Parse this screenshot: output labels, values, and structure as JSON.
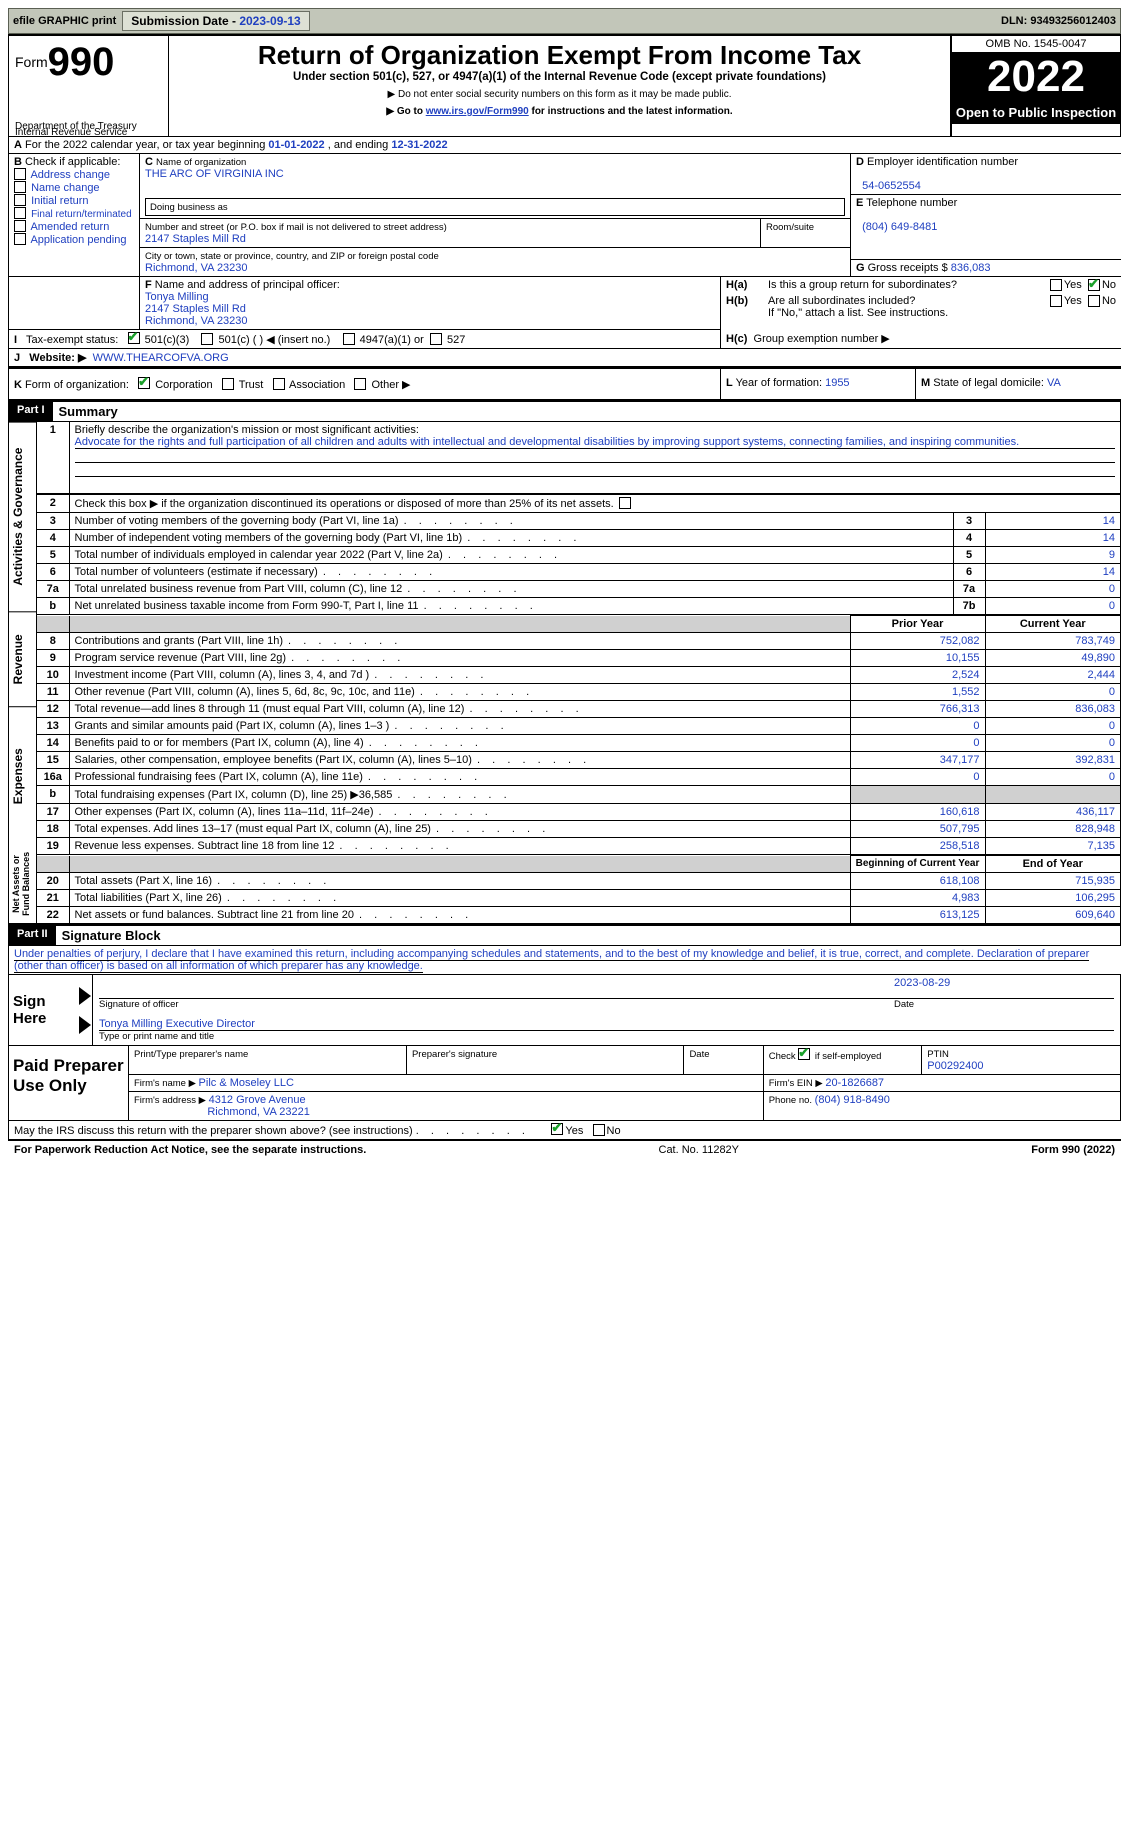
{
  "top": {
    "efile": "efile GRAPHIC print",
    "efile_btn": "print",
    "sub_date_label": "Submission Date - ",
    "sub_date": "2023-09-13",
    "dln_label": "DLN: ",
    "dln": "93493256012403"
  },
  "hdr": {
    "form_word": "Form",
    "form_num": "990",
    "dept": "Department of the Treasury",
    "irs": "Internal Revenue Service",
    "title": "Return of Organization Exempt From Income Tax",
    "line1": "Under section 501(c), 527, or 4947(a)(1) of the Internal Revenue Code (except private foundations)",
    "line2": "▶ Do not enter social security numbers on this form as it may be made public.",
    "line3a": "▶ Go to ",
    "line3_link": "www.irs.gov/Form990",
    "line3b": " for instructions and the latest information.",
    "omb": "OMB No. 1545-0047",
    "year": "2022",
    "open": "Open to Public Inspection"
  },
  "A": {
    "text_a": "For the 2022 calendar year, or tax year beginning ",
    "beg": "01-01-2022",
    "mid": " , and ending ",
    "end": "12-31-2022"
  },
  "B": {
    "label": "Check if applicable:",
    "items": [
      "Address change",
      "Name change",
      "Initial return",
      "Final return/terminated",
      "Amended return",
      "Application pending"
    ]
  },
  "C": {
    "l_name": "Name of organization",
    "name": "THE ARC OF VIRGINIA INC",
    "dba": "Doing business as",
    "l_addr": "Number and street (or P.O. box if mail is not delivered to street address)",
    "addr": "2147 Staples Mill Rd",
    "l_room": "Room/suite",
    "l_city": "City or town, state or province, country, and ZIP or foreign postal code",
    "city": "Richmond, VA  23230"
  },
  "D": {
    "label": "Employer identification number",
    "val": "54-0652554"
  },
  "E": {
    "label": "Telephone number",
    "val": "(804) 649-8481"
  },
  "G": {
    "label": "Gross receipts $ ",
    "val": "836,083"
  },
  "F": {
    "label": "Name and address of principal officer:",
    "name": "Tonya Milling",
    "addr1": "2147 Staples Mill Rd",
    "addr2": "Richmond, VA  23230"
  },
  "H": {
    "a": "Is this a group return for subordinates?",
    "b": "Are all subordinates included?",
    "b_note": "If \"No,\" attach a list. See instructions.",
    "c_l": "Group exemption number ▶",
    "yes": "Yes",
    "no": "No"
  },
  "I": {
    "label": "Tax-exempt status:",
    "o1": "501(c)(3)",
    "o2": "501(c) (  ) ◀ (insert no.)",
    "o3": "4947(a)(1) or",
    "o4": "527"
  },
  "J": {
    "label": "Website: ▶",
    "val": "WWW.THEARCOFVA.ORG"
  },
  "K": {
    "label": "Form of organization:",
    "o1": "Corporation",
    "o2": "Trust",
    "o3": "Association",
    "o4": "Other ▶"
  },
  "L": {
    "label": "Year of formation: ",
    "val": "1955"
  },
  "M": {
    "label": "State of legal domicile: ",
    "val": "VA"
  },
  "part1": {
    "bar": "Part I",
    "title": "Summary"
  },
  "p1": {
    "q1l": "Briefly describe the organization's mission or most significant activities:",
    "q1v": "Advocate for the rights and full participation of all children and adults with intellectual and developmental disabilities by improving support systems, connecting families, and inspiring communities.",
    "q2": "Check this box ▶   if the organization discontinued its operations or disposed of more than 25% of its net assets.",
    "lines": [
      {
        "n": "3",
        "t": "Number of voting members of the governing body (Part VI, line 1a)",
        "b": "3",
        "v": "14"
      },
      {
        "n": "4",
        "t": "Number of independent voting members of the governing body (Part VI, line 1b)",
        "b": "4",
        "v": "14"
      },
      {
        "n": "5",
        "t": "Total number of individuals employed in calendar year 2022 (Part V, line 2a)",
        "b": "5",
        "v": "9"
      },
      {
        "n": "6",
        "t": "Total number of volunteers (estimate if necessary)",
        "b": "6",
        "v": "14"
      },
      {
        "n": "7a",
        "t": "Total unrelated business revenue from Part VIII, column (C), line 12",
        "b": "7a",
        "v": "0"
      },
      {
        "n": "b",
        "t": "Net unrelated business taxable income from Form 990-T, Part I, line 11",
        "b": "7b",
        "v": "0"
      }
    ],
    "py": "Prior Year",
    "cy": "Current Year",
    "rev": [
      {
        "n": "8",
        "t": "Contributions and grants (Part VIII, line 1h)",
        "p": "752,082",
        "c": "783,749"
      },
      {
        "n": "9",
        "t": "Program service revenue (Part VIII, line 2g)",
        "p": "10,155",
        "c": "49,890"
      },
      {
        "n": "10",
        "t": "Investment income (Part VIII, column (A), lines 3, 4, and 7d )",
        "p": "2,524",
        "c": "2,444"
      },
      {
        "n": "11",
        "t": "Other revenue (Part VIII, column (A), lines 5, 6d, 8c, 9c, 10c, and 11e)",
        "p": "1,552",
        "c": "0"
      },
      {
        "n": "12",
        "t": "Total revenue—add lines 8 through 11 (must equal Part VIII, column (A), line 12)",
        "p": "766,313",
        "c": "836,083"
      }
    ],
    "exp": [
      {
        "n": "13",
        "t": "Grants and similar amounts paid (Part IX, column (A), lines 1–3 )",
        "p": "0",
        "c": "0"
      },
      {
        "n": "14",
        "t": "Benefits paid to or for members (Part IX, column (A), line 4)",
        "p": "0",
        "c": "0"
      },
      {
        "n": "15",
        "t": "Salaries, other compensation, employee benefits (Part IX, column (A), lines 5–10)",
        "p": "347,177",
        "c": "392,831"
      },
      {
        "n": "16a",
        "t": "Professional fundraising fees (Part IX, column (A), line 11e)",
        "p": "0",
        "c": "0"
      },
      {
        "n": "b",
        "t": "Total fundraising expenses (Part IX, column (D), line 25) ▶36,585",
        "p": "GREY",
        "c": "GREY"
      },
      {
        "n": "17",
        "t": "Other expenses (Part IX, column (A), lines 11a–11d, 11f–24e)",
        "p": "160,618",
        "c": "436,117"
      },
      {
        "n": "18",
        "t": "Total expenses. Add lines 13–17 (must equal Part IX, column (A), line 25)",
        "p": "507,795",
        "c": "828,948"
      },
      {
        "n": "19",
        "t": "Revenue less expenses. Subtract line 18 from line 12",
        "p": "258,518",
        "c": "7,135"
      }
    ],
    "bcy": "Beginning of Current Year",
    "ecy": "End of Year",
    "net": [
      {
        "n": "20",
        "t": "Total assets (Part X, line 16)",
        "p": "618,108",
        "c": "715,935"
      },
      {
        "n": "21",
        "t": "Total liabilities (Part X, line 26)",
        "p": "4,983",
        "c": "106,295"
      },
      {
        "n": "22",
        "t": "Net assets or fund balances. Subtract line 21 from line 20",
        "p": "613,125",
        "c": "609,640"
      }
    ],
    "tabs": {
      "ag": "Activities & Governance",
      "rev": "Revenue",
      "exp": "Expenses",
      "net": "Net Assets or Fund Balances"
    }
  },
  "part2": {
    "bar": "Part II",
    "title": "Signature Block"
  },
  "p2": {
    "decl": "Under penalties of perjury, I declare that I have examined this return, including accompanying schedules and statements, and to the best of my knowledge and belief, it is true, correct, and complete. Declaration of preparer (other than officer) is based on all information of which preparer has any knowledge.",
    "sign_here": "Sign Here",
    "sig_of": "Signature of officer",
    "sig_date": "2023-08-29",
    "date_l": "Date",
    "typed": "Tonya Milling Executive Director",
    "typed_l": "Type or print name and title",
    "paid": "Paid Preparer Use Only",
    "pp_name_l": "Print/Type preparer's name",
    "pp_sig_l": "Preparer's signature",
    "pp_date_l": "Date",
    "pp_check_l": "Check          if self-employed",
    "ptin_l": "PTIN",
    "ptin": "P00292400",
    "firm_name_l": "Firm's name   ▶ ",
    "firm_name": "Pilc & Moseley LLC",
    "firm_ein_l": "Firm's EIN ▶ ",
    "firm_ein": "20-1826687",
    "firm_addr_l": "Firm's address ▶ ",
    "firm_addr1": "4312 Grove Avenue",
    "firm_addr2": "Richmond, VA  23221",
    "phone_l": "Phone no. ",
    "phone": "(804) 918-8490",
    "discuss": "May the IRS discuss this return with the preparer shown above? (see instructions)"
  },
  "foot": {
    "l": "For Paperwork Reduction Act Notice, see the separate instructions.",
    "m": "Cat. No. 11282Y",
    "r": "Form 990 (2022)"
  },
  "letters": {
    "A": "A",
    "B": "B",
    "C": "C",
    "D": "D",
    "E": "E",
    "F": "F",
    "G": "G",
    "H_a": "H(a)",
    "H_b": "H(b)",
    "H_c": "H(c)",
    "I": "I",
    "J": "J",
    "K": "K",
    "L": "L",
    "M": "M"
  }
}
